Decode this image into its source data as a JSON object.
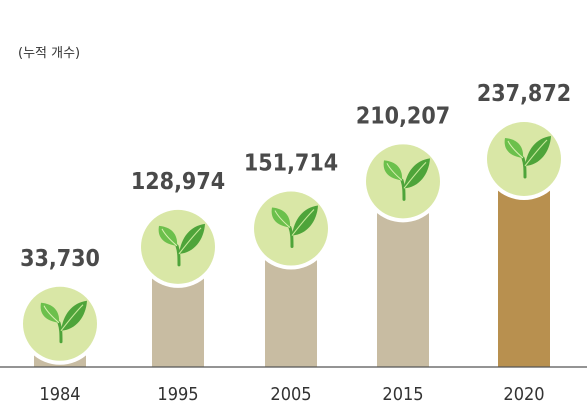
{
  "unit_label": "(누적 개수)",
  "colors": {
    "bar_default": "#c8bca2",
    "bar_highlight": "#b8904f",
    "circle_fill": "#d9e7a6",
    "leaf_dark": "#4ea43a",
    "leaf_light": "#6cc04c",
    "axis_line": "#555555"
  },
  "chart_data": {
    "type": "bar",
    "title": "",
    "xlabel": "",
    "ylabel": "(누적 개수)",
    "categories": [
      "1984",
      "1995",
      "2005",
      "2015",
      "2020"
    ],
    "values": [
      33730,
      128974,
      151714,
      210207,
      237872
    ],
    "value_labels": [
      "33,730",
      "128,974",
      "151,714",
      "210,207",
      "237,872"
    ],
    "highlight_index": 4,
    "ylim": [
      0,
      237872
    ],
    "grid": false,
    "legend": "none",
    "marker_icon": "sprout-icon"
  }
}
